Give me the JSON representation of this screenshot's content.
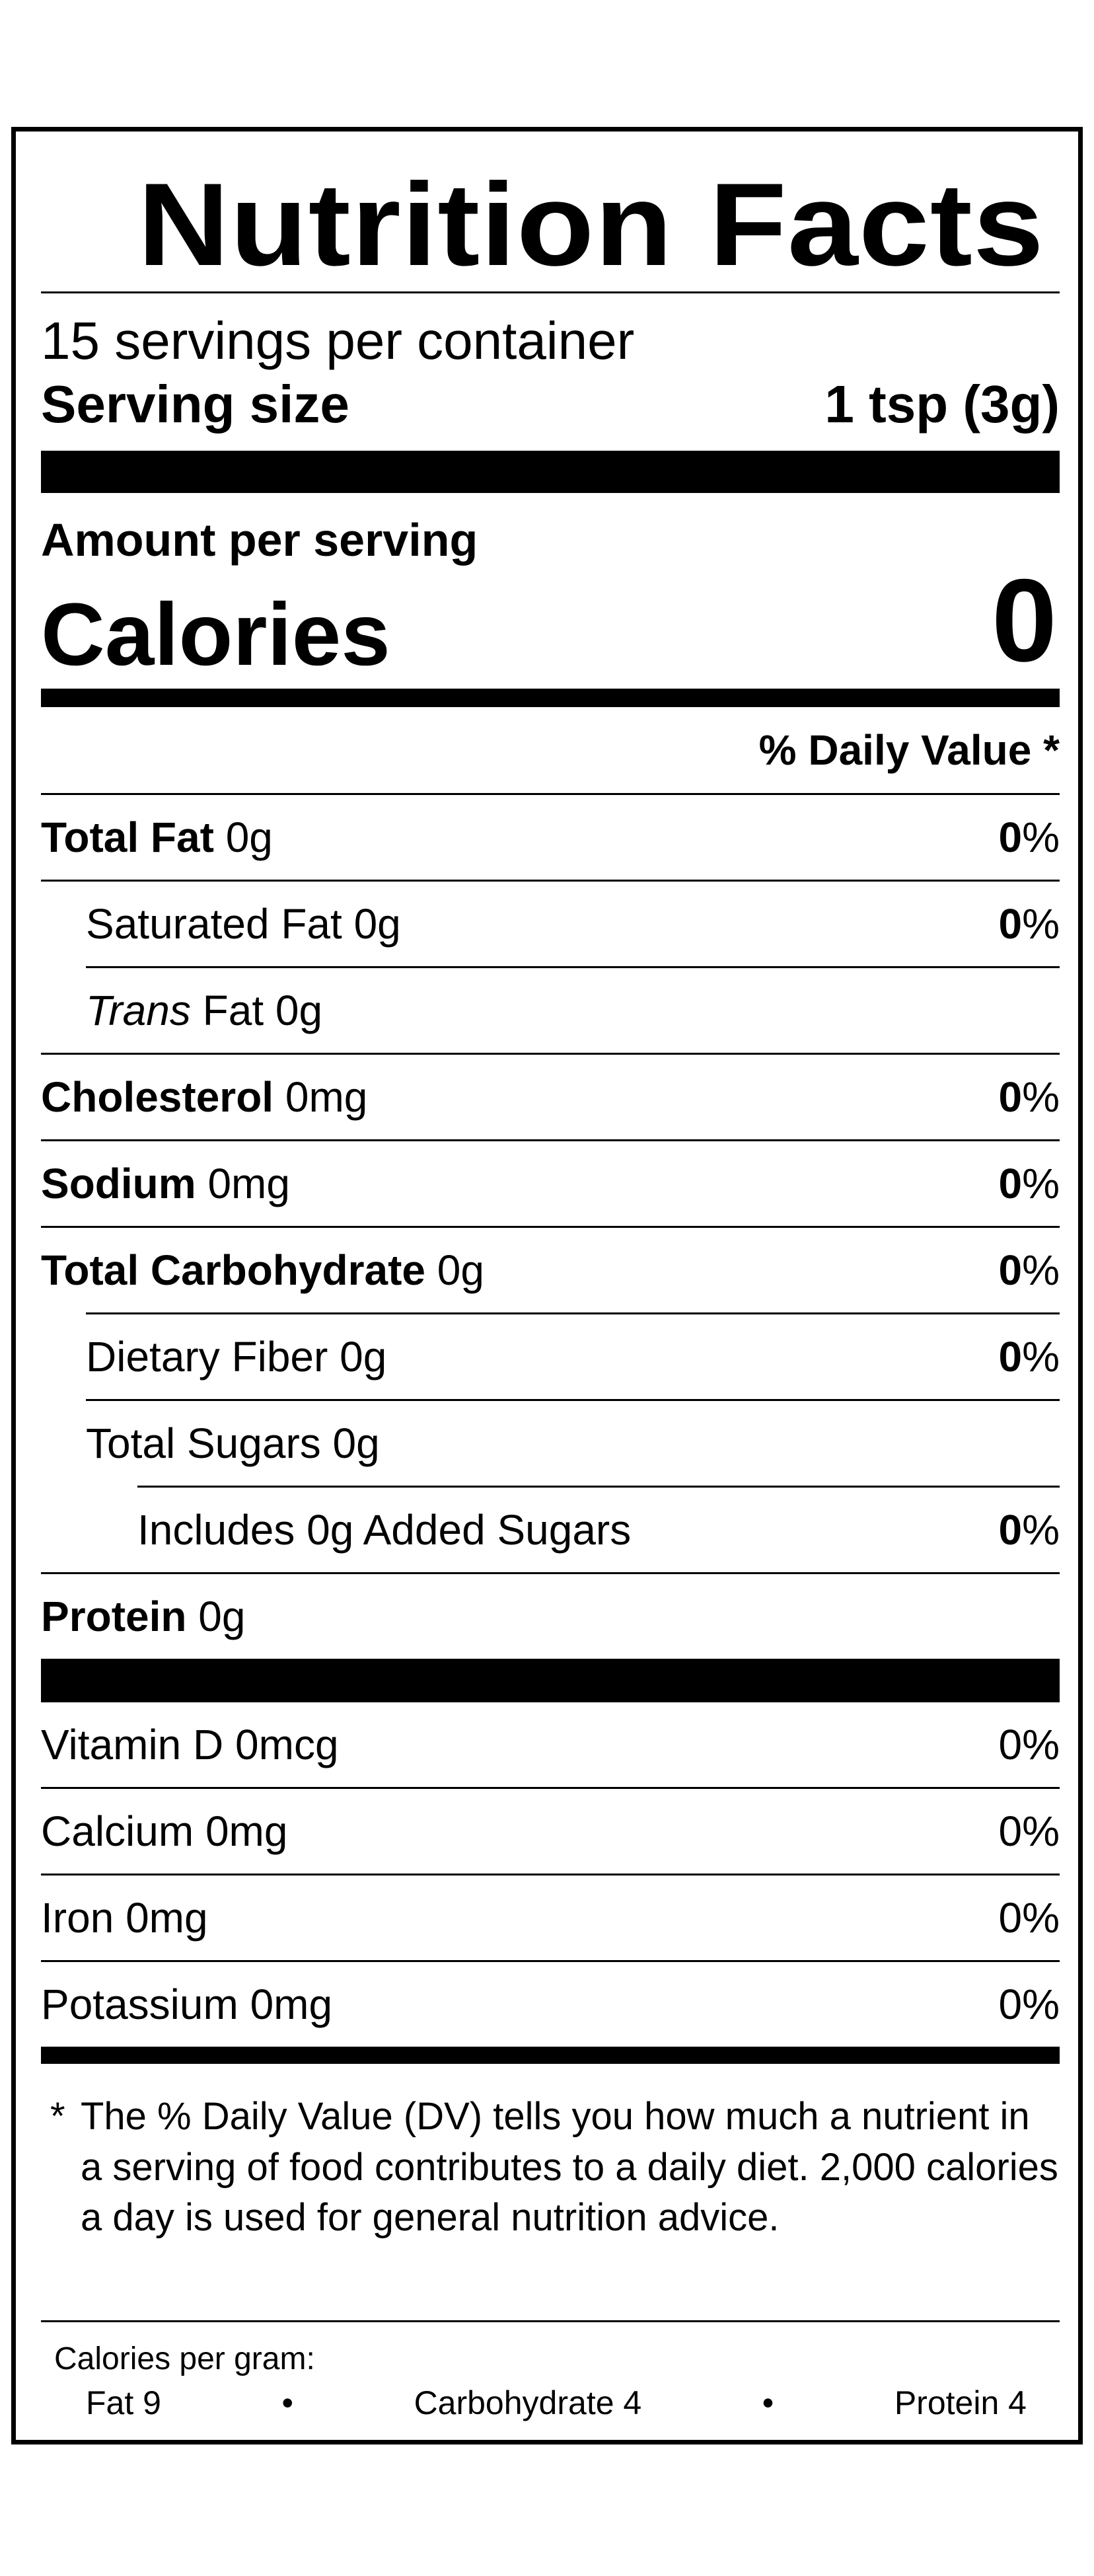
{
  "label": {
    "title": "Nutrition Facts",
    "servings_per_container": "15 servings per container",
    "serving_size_label": "Serving size",
    "serving_size_value": "1 tsp (3g)",
    "amount_per_serving": "Amount per serving",
    "calories_label": "Calories",
    "calories_value": "0",
    "daily_value_header": "% Daily Value *"
  },
  "nutrients": {
    "total_fat": {
      "name": "Total Fat",
      "amount": "0g",
      "dv": "0"
    },
    "saturated_fat": {
      "name": "Saturated Fat 0g",
      "dv": "0"
    },
    "trans_fat": {
      "name_italic": "Trans",
      "rest": "Fat 0g"
    },
    "cholesterol": {
      "name": "Cholesterol",
      "amount": "0mg",
      "dv": "0"
    },
    "sodium": {
      "name": "Sodium",
      "amount": "0mg",
      "dv": "0"
    },
    "total_carbohydrate": {
      "name": "Total Carbohydrate",
      "amount": "0g",
      "dv": "0"
    },
    "dietary_fiber": {
      "name": "Dietary Fiber 0g",
      "dv": "0"
    },
    "total_sugars": {
      "name": "Total Sugars 0g"
    },
    "added_sugars": {
      "name": "Includes 0g Added Sugars",
      "dv": "0"
    },
    "protein": {
      "name": "Protein",
      "amount": "0g"
    }
  },
  "vitamins": {
    "vitamin_d": {
      "name": "Vitamin D 0mcg",
      "dv": "0%"
    },
    "calcium": {
      "name": "Calcium 0mg",
      "dv": "0%"
    },
    "iron": {
      "name": "Iron 0mg",
      "dv": "0%"
    },
    "potassium": {
      "name": "Potassium 0mg",
      "dv": "0%"
    }
  },
  "percent_sign": "%",
  "footnote": {
    "star": "*",
    "text": "The % Daily Value (DV) tells you how much a nutrient in a serving of food contributes to a daily diet. 2,000 calories a day is used for general nutrition advice."
  },
  "calories_per_gram": {
    "heading": "Calories per gram:",
    "fat": "Fat 9",
    "carbohydrate": "Carbohydrate 4",
    "protein": "Protein 4",
    "separator": "•"
  }
}
